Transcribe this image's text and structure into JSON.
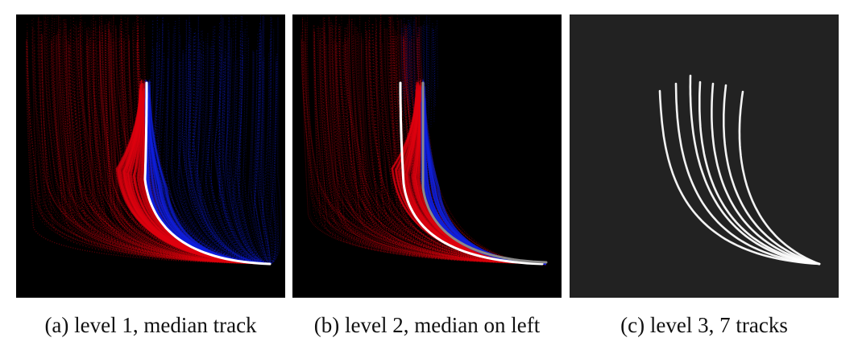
{
  "colors": {
    "left_cloud": "#e00010",
    "right_cloud": "#1020e0",
    "median": "#ffffff",
    "median_right": "#8a8a8a",
    "panel_bg_dark": "#000000",
    "panel_bg_gray": "#222222"
  },
  "panels": [
    {
      "id": "a",
      "caption": "(a) level 1, median track"
    },
    {
      "id": "b",
      "caption": "(b) level 2, median on left"
    },
    {
      "id": "c",
      "caption": "(c) level 3, 7 tracks"
    }
  ]
}
